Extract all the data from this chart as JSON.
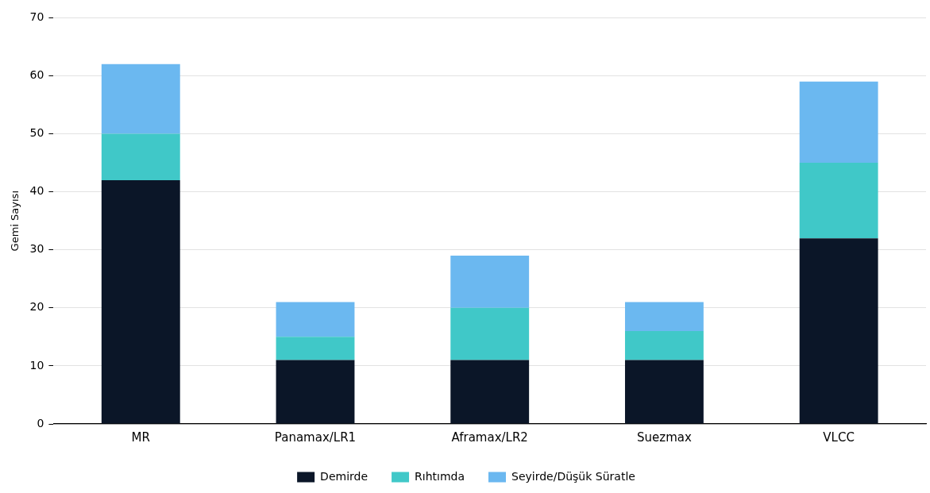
{
  "chart_data": {
    "type": "bar",
    "ylabel": "Gemi Sayısı",
    "categories": [
      "MR",
      "Panamax/LR1",
      "Aframax/LR2",
      "Suezmax",
      "VLCC"
    ],
    "series": [
      {
        "name": "Demirde",
        "color": "#0b1628",
        "values": [
          42,
          11,
          11,
          11,
          32
        ]
      },
      {
        "name": "Rıhtımda",
        "color": "#40c8c8",
        "values": [
          8,
          4,
          9,
          5,
          13
        ]
      },
      {
        "name": "Seyirde/Düşük Süratle",
        "color": "#6bb8f0",
        "values": [
          12,
          6,
          9,
          5,
          14
        ]
      }
    ],
    "stacked": true,
    "ylim": [
      0,
      70
    ],
    "yticks": [
      0,
      10,
      20,
      30,
      40,
      50,
      60,
      70
    ],
    "grid": "y",
    "legend": "bottom"
  }
}
